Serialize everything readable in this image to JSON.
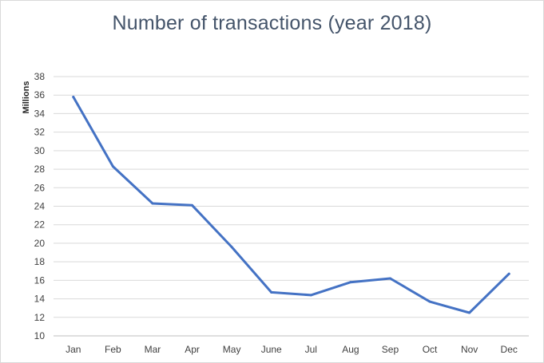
{
  "chart_data": {
    "type": "line",
    "title": "Number of transactions (year 2018)",
    "ylabel": "Millions",
    "xlabel": "",
    "categories": [
      "Jan",
      "Feb",
      "Mar",
      "Apr",
      "May",
      "June",
      "Jul",
      "Aug",
      "Sep",
      "Oct",
      "Nov",
      "Dec"
    ],
    "series": [
      {
        "values": [
          35.8,
          28.3,
          24.3,
          24.1,
          19.6,
          14.7,
          14.4,
          15.8,
          16.2,
          13.7,
          12.5,
          16.7
        ]
      }
    ],
    "ylim": [
      10,
      38
    ],
    "yticks": [
      10,
      12,
      14,
      16,
      18,
      20,
      22,
      24,
      26,
      28,
      30,
      32,
      34,
      36,
      38
    ],
    "grid": true,
    "line_color": "#4472c4",
    "grid_color": "#d9d9d9"
  }
}
